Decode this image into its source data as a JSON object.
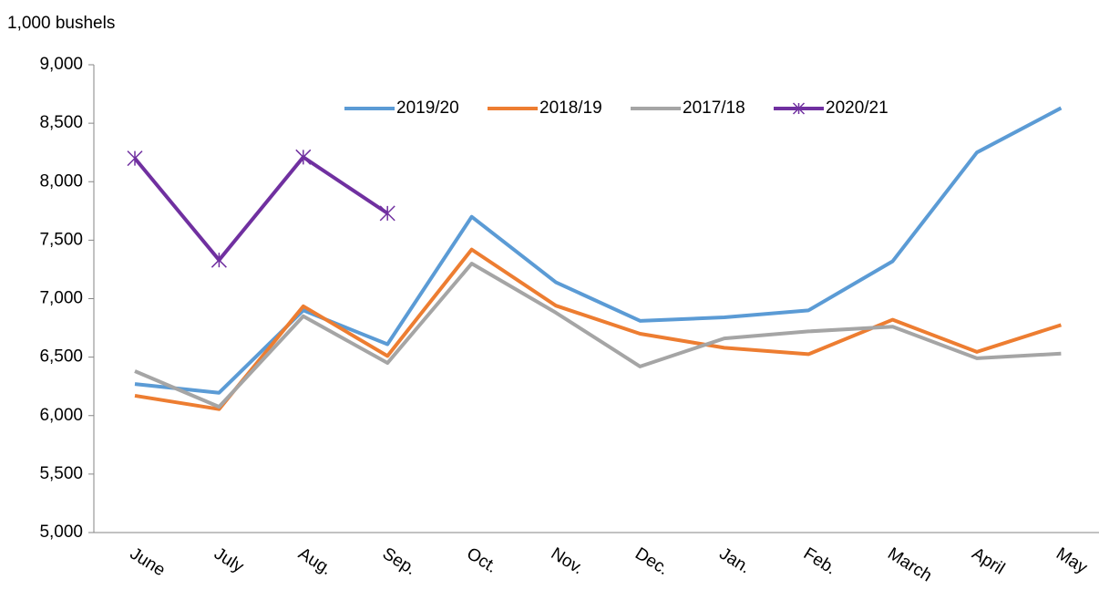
{
  "chart_data": {
    "type": "line",
    "y_axis_label": "1,000 bushels",
    "categories": [
      "June",
      "July",
      "Aug.",
      "Sep.",
      "Oct.",
      "Nov.",
      "Dec.",
      "Jan.",
      "Feb.",
      "March",
      "April",
      "May"
    ],
    "series": [
      {
        "name": "2019/20",
        "color": "#5b9bd5",
        "values": [
          6270,
          6195,
          6900,
          6610,
          7700,
          7140,
          6810,
          6840,
          6900,
          7320,
          8250,
          8630
        ]
      },
      {
        "name": "2018/19",
        "color": "#ed7d31",
        "values": [
          6170,
          6055,
          6935,
          6510,
          7420,
          6940,
          6700,
          6580,
          6525,
          6820,
          6545,
          6775
        ]
      },
      {
        "name": "2017/18",
        "color": "#a5a5a5",
        "values": [
          6380,
          6075,
          6850,
          6450,
          7300,
          6880,
          6420,
          6660,
          6720,
          6760,
          6490,
          6530
        ]
      },
      {
        "name": "2020/21",
        "color": "#7030a0",
        "marker": "asterisk",
        "values": [
          8200,
          7330,
          8210,
          7730,
          null,
          null,
          null,
          null,
          null,
          null,
          null,
          null
        ]
      }
    ],
    "ylim": [
      5000,
      9000
    ],
    "yticks": [
      {
        "value": 5000,
        "label": "5,000"
      },
      {
        "value": 5500,
        "label": "5,500"
      },
      {
        "value": 6000,
        "label": "6,000"
      },
      {
        "value": 6500,
        "label": "6,500"
      },
      {
        "value": 7000,
        "label": "7,000"
      },
      {
        "value": 7500,
        "label": "7,500"
      },
      {
        "value": 8000,
        "label": "8,000"
      },
      {
        "value": 8500,
        "label": "8,500"
      },
      {
        "value": 9000,
        "label": "9,000"
      }
    ],
    "legend": "top",
    "grid": false
  }
}
